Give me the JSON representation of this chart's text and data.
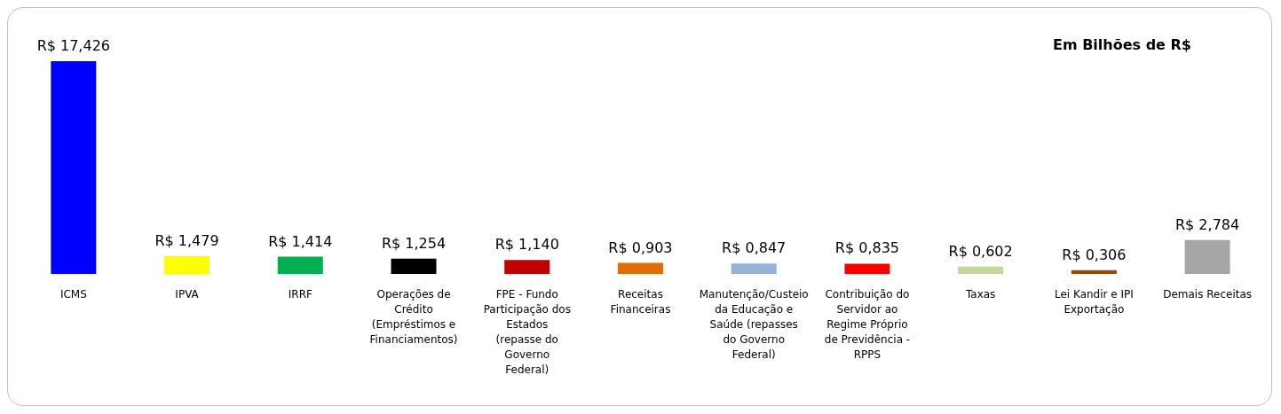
{
  "chart_data": {
    "type": "bar",
    "annotations": [
      "Em Bilhões de R$"
    ],
    "categories": [
      "ICMS",
      "IPVA",
      "IRRF",
      "Operações de Crédito (Empréstimos e Financiamentos)",
      "FPE - Fundo Participação dos Estados (repasse do Governo Federal)",
      "Receitas Financeiras",
      "Manutenção/Custeio da Educação e Saúde (repasses do Governo Federal)",
      "Contribuição do Servidor ao Regime Próprio de Previdência - RPPS",
      "Taxas",
      "Lei Kandir e IPI Exportação",
      "Demais Receitas"
    ],
    "values": [
      17.426,
      1.479,
      1.414,
      1.254,
      1.14,
      0.903,
      0.847,
      0.835,
      0.602,
      0.306,
      2.784
    ],
    "value_labels": [
      "R$ 17,426",
      "R$ 1,479",
      "R$ 1,414",
      "R$ 1,254",
      "R$ 1,140",
      "R$ 0,903",
      "R$ 0,847",
      "R$ 0,835",
      "R$ 0,602",
      "R$ 0,306",
      "R$ 2,784"
    ],
    "colors": [
      "#0000ff",
      "#ffff00",
      "#00b050",
      "#000000",
      "#c00000",
      "#e36c0a",
      "#95b3d7",
      "#ff0000",
      "#c4d79b",
      "#974706",
      "#a6a6a6"
    ],
    "grid": false,
    "legend": false
  }
}
